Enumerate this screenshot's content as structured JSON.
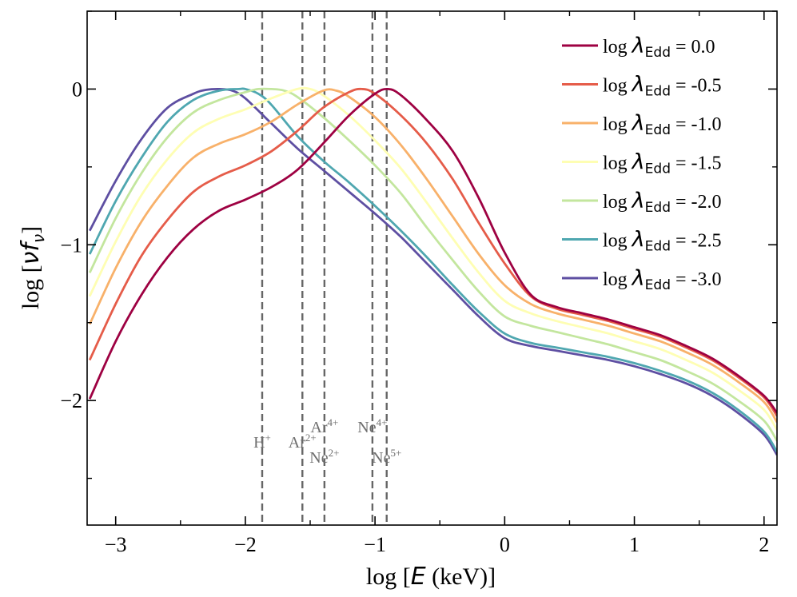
{
  "chart_data": {
    "type": "line",
    "xlabel_prefix": "log [",
    "xlabel_var": "E",
    "xlabel_suffix": " (keV)]",
    "ylabel_prefix": "log [",
    "ylabel_var": "νf",
    "ylabel_sub": "ν",
    "ylabel_suffix": "]",
    "xlim": [
      -3.22,
      2.1
    ],
    "ylim": [
      -2.8,
      0.5
    ],
    "xticks": [
      -3,
      -2,
      -1,
      0,
      1,
      2
    ],
    "xtick_labels": [
      "−3",
      "−2",
      "−1",
      "0",
      "1",
      "2"
    ],
    "yticks": [
      -2,
      -1,
      0
    ],
    "ytick_labels": [
      "−2",
      "−1",
      "0"
    ],
    "legend_position": "top-right",
    "legend_prefix": "log ",
    "legend_symbol": "λ",
    "legend_sub": "Edd",
    "series": [
      {
        "name": "log λEdd =  0.0",
        "value_label": "=  0.0",
        "color": "#9e0142",
        "x": [
          -3.2,
          -3.0,
          -2.8,
          -2.6,
          -2.4,
          -2.2,
          -2.0,
          -1.8,
          -1.6,
          -1.4,
          -1.2,
          -1.0,
          -0.9,
          -0.8,
          -0.6,
          -0.4,
          -0.2,
          0.0,
          0.2,
          0.4,
          0.6,
          0.8,
          1.0,
          1.2,
          1.4,
          1.6,
          1.8,
          2.0,
          2.1
        ],
        "y": [
          -1.99,
          -1.62,
          -1.32,
          -1.08,
          -0.9,
          -0.78,
          -0.71,
          -0.63,
          -0.52,
          -0.35,
          -0.17,
          -0.03,
          0.0,
          -0.04,
          -0.2,
          -0.4,
          -0.7,
          -1.05,
          -1.32,
          -1.4,
          -1.44,
          -1.48,
          -1.53,
          -1.58,
          -1.65,
          -1.73,
          -1.84,
          -1.97,
          -2.08
        ]
      },
      {
        "name": "log λEdd = -0.5",
        "value_label": "= -0.5",
        "color": "#e55c49",
        "x": [
          -3.2,
          -3.0,
          -2.8,
          -2.6,
          -2.4,
          -2.2,
          -2.0,
          -1.8,
          -1.6,
          -1.4,
          -1.2,
          -1.1,
          -1.0,
          -0.8,
          -0.6,
          -0.4,
          -0.2,
          0.0,
          0.2,
          0.4,
          0.6,
          0.8,
          1.0,
          1.2,
          1.4,
          1.6,
          1.8,
          2.0,
          2.1
        ],
        "y": [
          -1.74,
          -1.38,
          -1.07,
          -0.84,
          -0.66,
          -0.56,
          -0.49,
          -0.4,
          -0.27,
          -0.12,
          -0.02,
          0.0,
          -0.03,
          -0.17,
          -0.35,
          -0.58,
          -0.86,
          -1.12,
          -1.33,
          -1.41,
          -1.45,
          -1.49,
          -1.54,
          -1.59,
          -1.66,
          -1.74,
          -1.85,
          -1.98,
          -2.1
        ]
      },
      {
        "name": "log λEdd = -1.0",
        "value_label": "= -1.0",
        "color": "#f8b16a",
        "x": [
          -3.2,
          -3.0,
          -2.8,
          -2.6,
          -2.4,
          -2.2,
          -2.0,
          -1.8,
          -1.6,
          -1.4,
          -1.3,
          -1.2,
          -1.0,
          -0.8,
          -0.6,
          -0.4,
          -0.2,
          0.0,
          0.2,
          0.4,
          0.6,
          0.8,
          1.0,
          1.2,
          1.4,
          1.6,
          1.8,
          2.0,
          2.1
        ],
        "y": [
          -1.51,
          -1.15,
          -0.85,
          -0.62,
          -0.44,
          -0.35,
          -0.29,
          -0.21,
          -0.1,
          -0.01,
          -0.01,
          -0.05,
          -0.18,
          -0.36,
          -0.58,
          -0.82,
          -1.06,
          -1.26,
          -1.38,
          -1.44,
          -1.48,
          -1.52,
          -1.57,
          -1.62,
          -1.69,
          -1.77,
          -1.88,
          -2.01,
          -2.14
        ]
      },
      {
        "name": "log λEdd = -1.5",
        "value_label": "= -1.5",
        "color": "#fefeb3",
        "x": [
          -3.2,
          -3.0,
          -2.8,
          -2.6,
          -2.4,
          -2.2,
          -2.0,
          -1.8,
          -1.6,
          -1.5,
          -1.4,
          -1.2,
          -1.0,
          -0.8,
          -0.6,
          -0.4,
          -0.2,
          0.0,
          0.2,
          0.4,
          0.6,
          0.8,
          1.0,
          1.2,
          1.4,
          1.6,
          1.8,
          2.0,
          2.1
        ],
        "y": [
          -1.33,
          -0.98,
          -0.68,
          -0.45,
          -0.28,
          -0.19,
          -0.13,
          -0.06,
          0.0,
          0.0,
          -0.04,
          -0.17,
          -0.33,
          -0.51,
          -0.73,
          -0.96,
          -1.18,
          -1.36,
          -1.44,
          -1.49,
          -1.53,
          -1.57,
          -1.62,
          -1.67,
          -1.74,
          -1.82,
          -1.93,
          -2.06,
          -2.19
        ]
      },
      {
        "name": "log λEdd = -2.0",
        "value_label": "= -2.0",
        "color": "#c3e69e",
        "x": [
          -3.2,
          -3.0,
          -2.8,
          -2.6,
          -2.4,
          -2.2,
          -2.0,
          -1.9,
          -1.8,
          -1.7,
          -1.6,
          -1.4,
          -1.2,
          -1.0,
          -0.8,
          -0.6,
          -0.4,
          -0.2,
          0.0,
          0.2,
          0.4,
          0.6,
          0.8,
          1.0,
          1.2,
          1.4,
          1.6,
          1.8,
          2.0,
          2.1
        ],
        "y": [
          -1.18,
          -0.83,
          -0.54,
          -0.31,
          -0.15,
          -0.07,
          -0.02,
          0.0,
          0.0,
          -0.01,
          -0.05,
          -0.18,
          -0.33,
          -0.49,
          -0.67,
          -0.89,
          -1.1,
          -1.3,
          -1.46,
          -1.52,
          -1.56,
          -1.6,
          -1.64,
          -1.69,
          -1.74,
          -1.81,
          -1.89,
          -2.0,
          -2.13,
          -2.26
        ]
      },
      {
        "name": "log λEdd = -2.5",
        "value_label": "= -2.5",
        "color": "#4fa7b0",
        "x": [
          -3.2,
          -3.0,
          -2.8,
          -2.6,
          -2.4,
          -2.2,
          -2.05,
          -2.0,
          -1.9,
          -1.8,
          -1.6,
          -1.4,
          -1.2,
          -1.0,
          -0.8,
          -0.6,
          -0.4,
          -0.2,
          0.0,
          0.2,
          0.4,
          0.6,
          0.8,
          1.0,
          1.2,
          1.4,
          1.6,
          1.8,
          2.0,
          2.1
        ],
        "y": [
          -1.06,
          -0.72,
          -0.44,
          -0.21,
          -0.07,
          -0.01,
          0.0,
          0.0,
          -0.03,
          -0.1,
          -0.3,
          -0.46,
          -0.6,
          -0.75,
          -0.91,
          -1.08,
          -1.26,
          -1.43,
          -1.57,
          -1.63,
          -1.66,
          -1.69,
          -1.72,
          -1.76,
          -1.81,
          -1.87,
          -1.95,
          -2.06,
          -2.2,
          -2.33
        ]
      },
      {
        "name": "log λEdd = -3.0",
        "value_label": "= -3.0",
        "color": "#5e4fa2",
        "x": [
          -3.2,
          -3.0,
          -2.8,
          -2.6,
          -2.4,
          -2.3,
          -2.2,
          -2.1,
          -2.0,
          -1.8,
          -1.6,
          -1.4,
          -1.2,
          -1.0,
          -0.8,
          -0.6,
          -0.4,
          -0.2,
          0.0,
          0.2,
          0.4,
          0.6,
          0.8,
          1.0,
          1.2,
          1.4,
          1.6,
          1.8,
          2.0,
          2.1
        ],
        "y": [
          -0.91,
          -0.59,
          -0.32,
          -0.12,
          -0.03,
          -0.005,
          0.0,
          -0.01,
          -0.06,
          -0.22,
          -0.38,
          -0.52,
          -0.66,
          -0.8,
          -0.95,
          -1.12,
          -1.29,
          -1.46,
          -1.6,
          -1.65,
          -1.68,
          -1.71,
          -1.74,
          -1.78,
          -1.83,
          -1.89,
          -1.97,
          -2.08,
          -2.22,
          -2.35
        ]
      }
    ],
    "vlines": [
      {
        "x": -1.87,
        "label": "H",
        "sup": "+",
        "row": 0
      },
      {
        "x": -1.56,
        "label": "Ar",
        "sup": "2+",
        "row": 0
      },
      {
        "x": -1.39,
        "label": "Ar",
        "sup": "4+",
        "row": -1
      },
      {
        "x": -1.39,
        "label": "Ne",
        "sup": "2+",
        "row": 1
      },
      {
        "x": -1.02,
        "label": "Ne",
        "sup": "4+",
        "row": -1
      },
      {
        "x": -0.91,
        "label": "Ne",
        "sup": "5+",
        "row": 1
      }
    ]
  }
}
